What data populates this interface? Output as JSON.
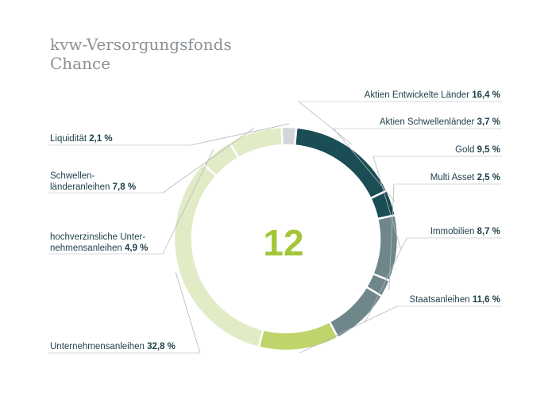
{
  "title_lines": [
    "kvw-Versorgungsfonds",
    "Chance"
  ],
  "colors": {
    "dark_green": "#1b4d55",
    "gray_teal": "#6f868a",
    "lime": "#bfd56b",
    "pale_lime": "#e1ebc6",
    "light_gray": "#d3d6d8"
  },
  "chart_data": {
    "type": "pie",
    "variant": "donut",
    "center_label": "12",
    "slices": [
      {
        "label": "Aktien Entwickelte Länder",
        "value_text": "16,4 %",
        "value": 16.4,
        "color": "#1b4d55"
      },
      {
        "label": "Aktien Schwellenländer",
        "value_text": "3,7 %",
        "value": 3.7,
        "color": "#1b4d55"
      },
      {
        "label": "Gold",
        "value_text": "9,5 %",
        "value": 9.5,
        "color": "#6f868a"
      },
      {
        "label": "Multi Asset",
        "value_text": "2,5 %",
        "value": 2.5,
        "color": "#6f868a"
      },
      {
        "label": "Immobilien",
        "value_text": "8,7 %",
        "value": 8.7,
        "color": "#6f868a"
      },
      {
        "label": "Staatsanleihen",
        "value_text": "11,6 %",
        "value": 11.6,
        "color": "#bfd56b"
      },
      {
        "label": "Unternehmensanleihen",
        "value_text": "32,8 %",
        "value": 32.8,
        "color": "#e1ebc6"
      },
      {
        "label": "hochverzinsliche Unternehmensanleihen",
        "label_lines": [
          "hochverzinsliche Unter-",
          "nehmensanleihen"
        ],
        "value_text": "4,9 %",
        "value": 4.9,
        "color": "#e1ebc6"
      },
      {
        "label": "Schwellenländeranleihen",
        "label_lines": [
          "Schwellen-",
          "länderanleihen"
        ],
        "value_text": "7,8 %",
        "value": 7.8,
        "color": "#e1ebc6"
      },
      {
        "label": "Liquidität",
        "value_text": "2,1 %",
        "value": 2.1,
        "color": "#d3d6d8"
      }
    ]
  }
}
